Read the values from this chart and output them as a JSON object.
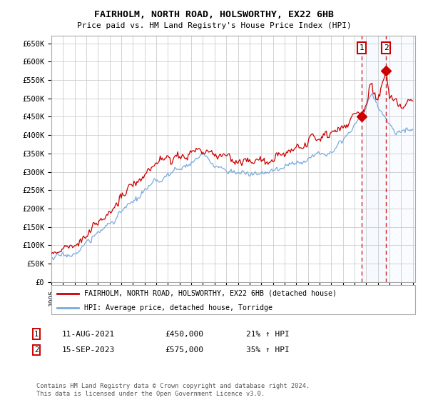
{
  "title": "FAIRHOLM, NORTH ROAD, HOLSWORTHY, EX22 6HB",
  "subtitle": "Price paid vs. HM Land Registry's House Price Index (HPI)",
  "yticks": [
    0,
    50000,
    100000,
    150000,
    200000,
    250000,
    300000,
    350000,
    400000,
    450000,
    500000,
    550000,
    600000,
    650000
  ],
  "ytick_labels": [
    "£0",
    "£50K",
    "£100K",
    "£150K",
    "£200K",
    "£250K",
    "£300K",
    "£350K",
    "£400K",
    "£450K",
    "£500K",
    "£550K",
    "£600K",
    "£650K"
  ],
  "legend_label_red": "FAIRHOLM, NORTH ROAD, HOLSWORTHY, EX22 6HB (detached house)",
  "legend_label_blue": "HPI: Average price, detached house, Torridge",
  "sale1_date": "11-AUG-2021",
  "sale1_price": 450000,
  "sale1_hpi": "21% ↑ HPI",
  "sale1_year": 2021.61,
  "sale2_date": "15-SEP-2023",
  "sale2_price": 575000,
  "sale2_hpi": "35% ↑ HPI",
  "sale2_year": 2023.7,
  "red_color": "#cc0000",
  "blue_color": "#7aaadd",
  "bg_color": "#ffffff",
  "grid_color": "#cccccc",
  "shaded_color": "#ddeeff",
  "hatch_color": "#bbccdd",
  "footnote": "Contains HM Land Registry data © Crown copyright and database right 2024.\nThis data is licensed under the Open Government Licence v3.0."
}
